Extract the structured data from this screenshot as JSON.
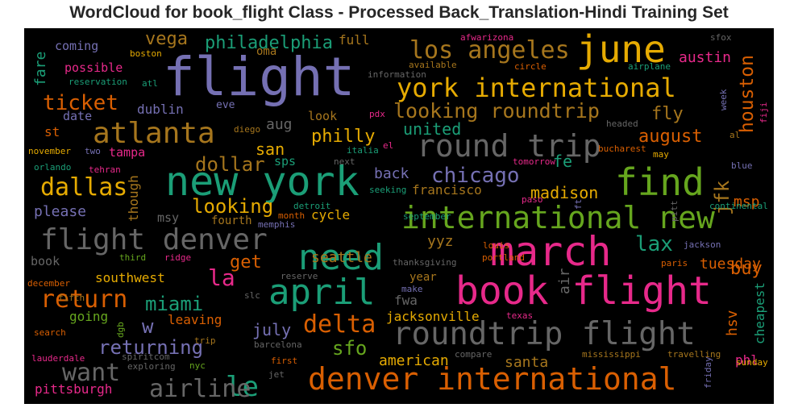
{
  "title": "WordCloud for book_flight Class - Processed Back_Translation-Hindi Training Set",
  "colors": {
    "background": "#000000",
    "purple": "#7570b3",
    "green": "#1b9e77",
    "orange": "#d95f02",
    "pink": "#e7298a",
    "lime": "#66a61e",
    "gold": "#e6ab02",
    "brown": "#a6761d",
    "gray": "#666666"
  },
  "words": [
    "flight",
    "new york",
    "book flight",
    "march",
    "june",
    "find",
    "need",
    "april",
    "roundtrip flight",
    "international new",
    "denver international",
    "round trip",
    "york international",
    "flight denver",
    "atlanta",
    "los angeles",
    "looking roundtrip",
    "le",
    "dallas",
    "return",
    "delta",
    "chicago",
    "airline",
    "want",
    "ticket",
    "miami",
    "philadelphia",
    "houston",
    "la",
    "returning",
    "dollar",
    "lax",
    "looking",
    "august",
    "jfk",
    "buy",
    "vega",
    "philly",
    "get",
    "fly",
    "madison",
    "sfo",
    "united",
    "september",
    "july",
    "san",
    "fe",
    "msp",
    "austin",
    "hsv",
    "tuesday",
    "cheapest",
    "southwest",
    "back",
    "fare",
    "jacksonville",
    "francisco",
    "seattle",
    "yyz",
    "air",
    "american",
    "santa",
    "pittsburgh",
    "full",
    "please",
    "coming",
    "possible",
    "dublin",
    "tampa",
    "aug",
    "look",
    "sps",
    "year",
    "cycle",
    "phl",
    "fwa",
    "going",
    "leaving",
    "oma",
    "date",
    "st",
    "though",
    "msy",
    "fourth",
    "book",
    "eve",
    "boston",
    "reservation",
    "atl",
    "information",
    "available",
    "circle",
    "airplane",
    "afwarizona",
    "sfox",
    "pdx",
    "diego",
    "tomorrow",
    "bucharest",
    "may",
    "headed",
    "november",
    "two",
    "tehran",
    "orlando",
    "next",
    "seeking",
    "detroit",
    "month",
    "memphis",
    "italia",
    "el",
    "ft",
    "paso",
    "louis",
    "portland",
    "thanksgiving",
    "jackson",
    "paris",
    "continental",
    "blue",
    "pitt",
    "week",
    "fiji",
    "al",
    "sunday",
    "friday",
    "december",
    "fifth",
    "third",
    "ridge",
    "reserve",
    "slc",
    "make",
    "texas",
    "compare",
    "mississippi",
    "travelling",
    "search",
    "dgb",
    "trip",
    "barcelona",
    "first",
    "jet",
    "nyc",
    "exploring",
    "spiritcom",
    "lauderdale",
    "w"
  ]
}
